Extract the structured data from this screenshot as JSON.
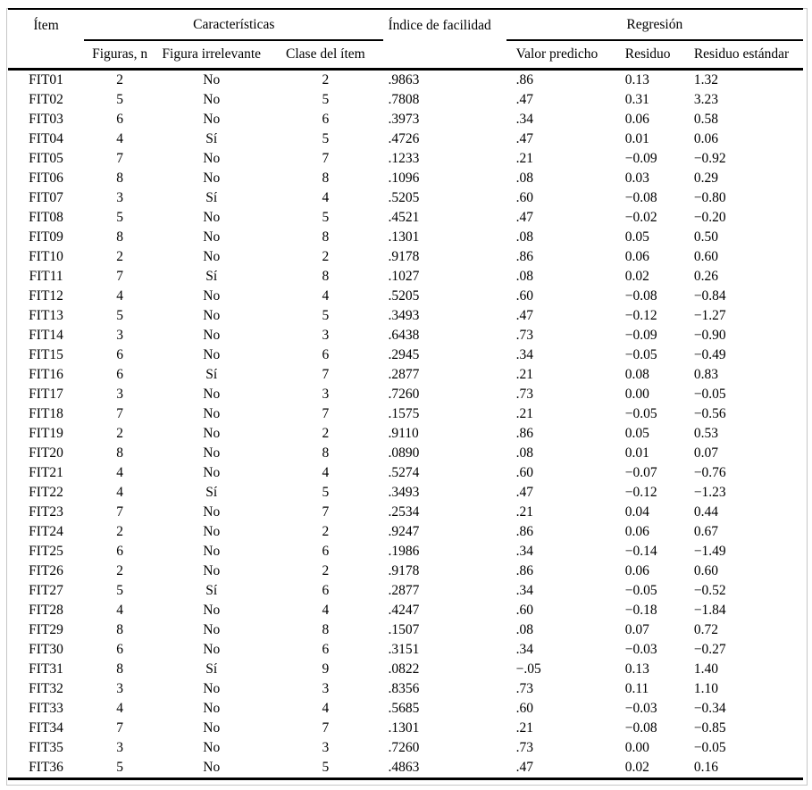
{
  "style": {
    "rule_color": "#000000",
    "frame_color": "#c6c6c6",
    "background": "#ffffff"
  },
  "table": {
    "header": {
      "item": "Ítem",
      "caracteristicas": "Características",
      "indice_facilidad": "Índice de facilidad",
      "regresion": "Regresión",
      "figuras_n": "Figuras, n",
      "figura_irrelevante": "Figura irrelevante",
      "clase_del_item": "Clase del ítem",
      "valor_predicho": "Valor predicho",
      "residuo": "Residuo",
      "residuo_estandar": "Residuo estándar"
    },
    "rows": [
      [
        "FIT01",
        "2",
        "No",
        "2",
        ".9863",
        ".86",
        "0.13",
        "1.32"
      ],
      [
        "FIT02",
        "5",
        "No",
        "5",
        ".7808",
        ".47",
        "0.31",
        "3.23"
      ],
      [
        "FIT03",
        "6",
        "No",
        "6",
        ".3973",
        ".34",
        "0.06",
        "0.58"
      ],
      [
        "FIT04",
        "4",
        "Sí",
        "5",
        ".4726",
        ".47",
        "0.01",
        "0.06"
      ],
      [
        "FIT05",
        "7",
        "No",
        "7",
        ".1233",
        ".21",
        "−0.09",
        "−0.92"
      ],
      [
        "FIT06",
        "8",
        "No",
        "8",
        ".1096",
        ".08",
        "0.03",
        "0.29"
      ],
      [
        "FIT07",
        "3",
        "Sí",
        "4",
        ".5205",
        ".60",
        "−0.08",
        "−0.80"
      ],
      [
        "FIT08",
        "5",
        "No",
        "5",
        ".4521",
        ".47",
        "−0.02",
        "−0.20"
      ],
      [
        "FIT09",
        "8",
        "No",
        "8",
        ".1301",
        ".08",
        "0.05",
        "0.50"
      ],
      [
        "FIT10",
        "2",
        "No",
        "2",
        ".9178",
        ".86",
        "0.06",
        "0.60"
      ],
      [
        "FIT11",
        "7",
        "Sí",
        "8",
        ".1027",
        ".08",
        "0.02",
        "0.26"
      ],
      [
        "FIT12",
        "4",
        "No",
        "4",
        ".5205",
        ".60",
        "−0.08",
        "−0.84"
      ],
      [
        "FIT13",
        "5",
        "No",
        "5",
        ".3493",
        ".47",
        "−0.12",
        "−1.27"
      ],
      [
        "FIT14",
        "3",
        "No",
        "3",
        ".6438",
        ".73",
        "−0.09",
        "−0.90"
      ],
      [
        "FIT15",
        "6",
        "No",
        "6",
        ".2945",
        ".34",
        "−0.05",
        "−0.49"
      ],
      [
        "FIT16",
        "6",
        "Sí",
        "7",
        ".2877",
        ".21",
        "0.08",
        "0.83"
      ],
      [
        "FIT17",
        "3",
        "No",
        "3",
        ".7260",
        ".73",
        "0.00",
        "−0.05"
      ],
      [
        "FIT18",
        "7",
        "No",
        "7",
        ".1575",
        ".21",
        "−0.05",
        "−0.56"
      ],
      [
        "FIT19",
        "2",
        "No",
        "2",
        ".9110",
        ".86",
        "0.05",
        "0.53"
      ],
      [
        "FIT20",
        "8",
        "No",
        "8",
        ".0890",
        ".08",
        "0.01",
        "0.07"
      ],
      [
        "FIT21",
        "4",
        "No",
        "4",
        ".5274",
        ".60",
        "−0.07",
        "−0.76"
      ],
      [
        "FIT22",
        "4",
        "Sí",
        "5",
        ".3493",
        ".47",
        "−0.12",
        "−1.23"
      ],
      [
        "FIT23",
        "7",
        "No",
        "7",
        ".2534",
        ".21",
        "0.04",
        "0.44"
      ],
      [
        "FIT24",
        "2",
        "No",
        "2",
        ".9247",
        ".86",
        "0.06",
        "0.67"
      ],
      [
        "FIT25",
        "6",
        "No",
        "6",
        ".1986",
        ".34",
        "−0.14",
        "−1.49"
      ],
      [
        "FIT26",
        "2",
        "No",
        "2",
        ".9178",
        ".86",
        "0.06",
        "0.60"
      ],
      [
        "FIT27",
        "5",
        "Sí",
        "6",
        ".2877",
        ".34",
        "−0.05",
        "−0.52"
      ],
      [
        "FIT28",
        "4",
        "No",
        "4",
        ".4247",
        ".60",
        "−0.18",
        "−1.84"
      ],
      [
        "FIT29",
        "8",
        "No",
        "8",
        ".1507",
        ".08",
        "0.07",
        "0.72"
      ],
      [
        "FIT30",
        "6",
        "No",
        "6",
        ".3151",
        ".34",
        "−0.03",
        "−0.27"
      ],
      [
        "FIT31",
        "8",
        "Sí",
        "9",
        ".0822",
        "−.05",
        "0.13",
        "1.40"
      ],
      [
        "FIT32",
        "3",
        "No",
        "3",
        ".8356",
        ".73",
        "0.11",
        "1.10"
      ],
      [
        "FIT33",
        "4",
        "No",
        "4",
        ".5685",
        ".60",
        "−0.03",
        "−0.34"
      ],
      [
        "FIT34",
        "7",
        "No",
        "7",
        ".1301",
        ".21",
        "−0.08",
        "−0.85"
      ],
      [
        "FIT35",
        "3",
        "No",
        "3",
        ".7260",
        ".73",
        "0.00",
        "−0.05"
      ],
      [
        "FIT36",
        "5",
        "No",
        "5",
        ".4863",
        ".47",
        "0.02",
        "0.16"
      ]
    ]
  }
}
